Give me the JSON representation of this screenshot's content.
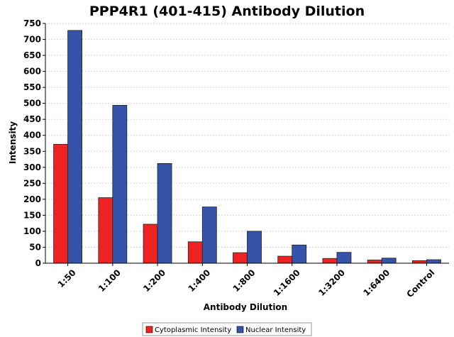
{
  "chart_data": {
    "type": "bar",
    "title": "PPP4R1 (401-415) Antibody Dilution",
    "xlabel": "Antibody Dilution",
    "ylabel": "Intensity",
    "categories": [
      "1:50",
      "1:100",
      "1:200",
      "1:400",
      "1:800",
      "1:1600",
      "1:3200",
      "1:6400",
      "Control"
    ],
    "series": [
      {
        "name": "Cytoplasmic Intensity",
        "color": "#ee2222",
        "values": [
          372,
          205,
          122,
          67,
          33,
          22,
          15,
          10,
          8
        ]
      },
      {
        "name": "Nuclear Intensity",
        "color": "#3553a8",
        "values": [
          728,
          494,
          312,
          176,
          100,
          57,
          34,
          16,
          11
        ]
      }
    ],
    "ylim": [
      0,
      750
    ],
    "yticks": [
      0,
      50,
      100,
      150,
      200,
      250,
      300,
      350,
      400,
      450,
      500,
      550,
      600,
      650,
      700,
      750
    ],
    "grid": true,
    "legend_position": "bottom"
  }
}
